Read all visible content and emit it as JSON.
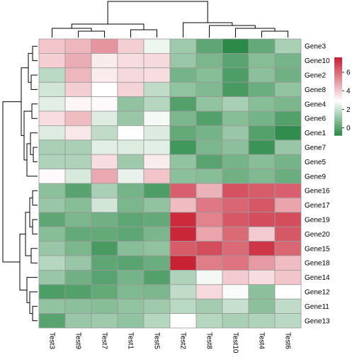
{
  "chart_data": {
    "type": "heatmap",
    "title": "",
    "columns": [
      "Test3",
      "Test9",
      "Test7",
      "Test1",
      "Test5",
      "Test2",
      "Test8",
      "Test10",
      "Test4",
      "Test6"
    ],
    "rows": [
      "Gene3",
      "Gene10",
      "Gene2",
      "Gene8",
      "Gene4",
      "Gene6",
      "Gene1",
      "Gene7",
      "Gene5",
      "Gene9",
      "Gene16",
      "Gene17",
      "Gene19",
      "Gene20",
      "Gene15",
      "Gene18",
      "Gene14",
      "Gene12",
      "Gene11",
      "Gene13"
    ],
    "values": [
      [
        4.1,
        4.4,
        5.1,
        3.9,
        2.6,
        1.2,
        0.1,
        -0.8,
        0.2,
        1.4
      ],
      [
        3.9,
        4.6,
        3.3,
        3.6,
        3.7,
        1.1,
        0.6,
        0.0,
        0.8,
        0.5
      ],
      [
        1.7,
        4.4,
        3.3,
        3.7,
        3.6,
        0.5,
        0.8,
        -0.2,
        0.9,
        0.4
      ],
      [
        2.1,
        3.9,
        2.9,
        3.8,
        1.8,
        1.0,
        0.7,
        -0.3,
        0.3,
        1.0
      ],
      [
        2.4,
        3.1,
        3.0,
        1.0,
        1.6,
        -0.1,
        1.0,
        1.4,
        0.8,
        0.6
      ],
      [
        3.6,
        4.3,
        2.3,
        1.1,
        2.7,
        0.6,
        -0.1,
        0.8,
        0.5,
        -0.1
      ],
      [
        2.3,
        3.4,
        1.8,
        2.9,
        2.3,
        0.2,
        0.5,
        1.1,
        -0.1,
        -0.7
      ],
      [
        1.4,
        1.4,
        2.4,
        2.3,
        2.4,
        -0.4,
        0.6,
        0.9,
        -0.5,
        1.1
      ],
      [
        1.5,
        1.5,
        3.6,
        1.2,
        3.3,
        1.0,
        0.0,
        0.5,
        0.8,
        0.5
      ],
      [
        3.0,
        2.2,
        4.7,
        2.5,
        4.1,
        0.9,
        0.8,
        0.4,
        0.7,
        0.3
      ],
      [
        0.9,
        0.0,
        1.4,
        0.5,
        -0.2,
        6.2,
        4.5,
        6.5,
        6.3,
        6.2
      ],
      [
        1.1,
        0.8,
        2.1,
        0.6,
        1.0,
        4.3,
        5.7,
        6.1,
        6.4,
        4.8
      ],
      [
        0.1,
        0.6,
        0.4,
        0.1,
        0.2,
        7.3,
        5.5,
        6.4,
        6.6,
        6.6
      ],
      [
        0.8,
        0.2,
        0.2,
        0.1,
        0.6,
        7.4,
        4.8,
        6.0,
        4.0,
        6.4
      ],
      [
        1.1,
        0.6,
        -0.3,
        0.8,
        1.0,
        6.3,
        6.6,
        6.0,
        7.1,
        6.1
      ],
      [
        1.6,
        1.1,
        0.1,
        0.0,
        0.3,
        7.5,
        5.6,
        5.8,
        5.0,
        4.3
      ],
      [
        1.1,
        0.4,
        0.0,
        0.5,
        -0.1,
        1.5,
        2.7,
        4.0,
        3.6,
        4.1
      ],
      [
        -0.2,
        -0.1,
        0.2,
        0.7,
        0.6,
        1.8,
        3.7,
        2.8,
        0.9,
        2.9
      ],
      [
        1.0,
        0.9,
        0.8,
        1.0,
        1.2,
        1.7,
        1.3,
        1.9,
        0.9,
        1.8
      ],
      [
        0.0,
        1.1,
        1.2,
        1.0,
        1.6,
        2.9,
        1.6,
        1.4,
        1.5,
        1.7
      ]
    ],
    "colorbar": {
      "ticks": [
        0,
        2,
        4,
        6
      ],
      "range": [
        -0.8,
        7.6
      ],
      "low_color": "#2b8a48",
      "mid_color": "#ffffff",
      "high_color": "#c81d31",
      "mid_value": 2.9
    },
    "grid": true,
    "legend_placement": "right"
  }
}
